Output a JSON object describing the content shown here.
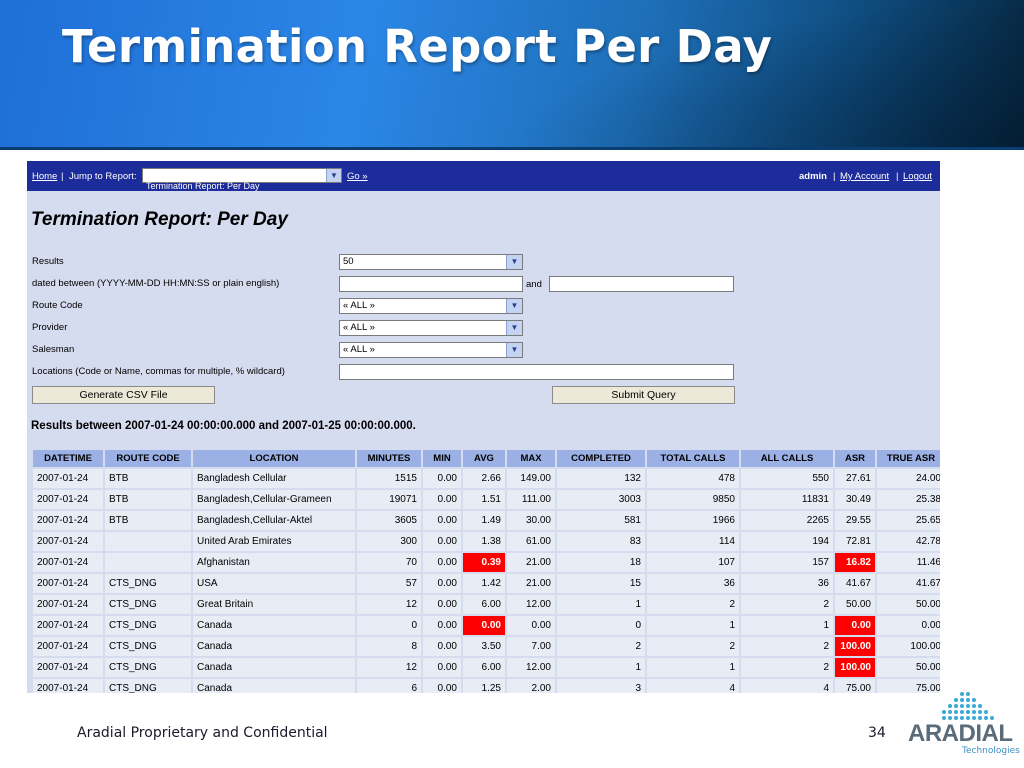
{
  "slide": {
    "title": "Termination Report Per Day",
    "footer": "Aradial Proprietary and Confidential",
    "page_number": "34",
    "logo_word": "ARADIAL",
    "logo_tagline": "Technologies"
  },
  "navbar": {
    "home": "Home",
    "separator": "|",
    "jump_label": "Jump to Report:",
    "jump_selected": "Termination Report: Per Day",
    "go": "Go »",
    "user": "admin",
    "my_account": "My Account",
    "logout": "Logout"
  },
  "page_heading": "Termination Report: Per Day",
  "form": {
    "results_label": "Results",
    "results_value": "50",
    "dated_label": "dated between (YYYY-MM-DD HH:MN:SS or plain english)",
    "and_label": "and",
    "dated_from": "",
    "dated_to": "",
    "route_code_label": "Route Code",
    "route_code_value": "« ALL »",
    "provider_label": "Provider",
    "provider_value": "« ALL »",
    "salesman_label": "Salesman",
    "salesman_value": "« ALL »",
    "locations_label": "Locations (Code or Name, commas for multiple, % wildcard)",
    "locations_value": "",
    "csv_button": "Generate CSV File",
    "submit_button": "Submit Query"
  },
  "results_heading": "Results between 2007-01-24 00:00:00.000 and 2007-01-25 00:00:00.000.",
  "table": {
    "columns": [
      "DATETIME",
      "ROUTE CODE",
      "LOCATION",
      "MINUTES",
      "MIN",
      "AVG",
      "MAX",
      "COMPLETED",
      "TOTAL CALLS",
      "ALL CALLS",
      "ASR",
      "TRUE ASR"
    ],
    "rows": [
      [
        "2007-01-24",
        "BTB",
        "Bangladesh Cellular",
        "1515",
        "0.00",
        "2.66",
        "149.00",
        "132",
        "478",
        "550",
        "27.61",
        "24.00"
      ],
      [
        "2007-01-24",
        "BTB",
        "Bangladesh,Cellular-Grameen",
        "19071",
        "0.00",
        "1.51",
        "111.00",
        "3003",
        "9850",
        "11831",
        "30.49",
        "25.38"
      ],
      [
        "2007-01-24",
        "BTB",
        "Bangladesh,Cellular-Aktel",
        "3605",
        "0.00",
        "1.49",
        "30.00",
        "581",
        "1966",
        "2265",
        "29.55",
        "25.65"
      ],
      [
        "2007-01-24",
        "",
        "United Arab Emirates",
        "300",
        "0.00",
        "1.38",
        "61.00",
        "83",
        "114",
        "194",
        "72.81",
        "42.78"
      ],
      [
        "2007-01-24",
        "",
        "Afghanistan",
        "70",
        "0.00",
        "0.39",
        "21.00",
        "18",
        "107",
        "157",
        "16.82",
        "11.46"
      ],
      [
        "2007-01-24",
        "CTS_DNG",
        "USA",
        "57",
        "0.00",
        "1.42",
        "21.00",
        "15",
        "36",
        "36",
        "41.67",
        "41.67"
      ],
      [
        "2007-01-24",
        "CTS_DNG",
        "Great Britain",
        "12",
        "0.00",
        "6.00",
        "12.00",
        "1",
        "2",
        "2",
        "50.00",
        "50.00"
      ],
      [
        "2007-01-24",
        "CTS_DNG",
        "Canada",
        "0",
        "0.00",
        "0.00",
        "0.00",
        "0",
        "1",
        "1",
        "0.00",
        "0.00"
      ],
      [
        "2007-01-24",
        "CTS_DNG",
        "Canada",
        "8",
        "0.00",
        "3.50",
        "7.00",
        "2",
        "2",
        "2",
        "100.00",
        "100.00"
      ],
      [
        "2007-01-24",
        "CTS_DNG",
        "Canada",
        "12",
        "0.00",
        "6.00",
        "12.00",
        "1",
        "1",
        "2",
        "100.00",
        "50.00"
      ],
      [
        "2007-01-24",
        "CTS_DNG",
        "Canada",
        "6",
        "0.00",
        "1.25",
        "2.00",
        "3",
        "4",
        "4",
        "75.00",
        "75.00"
      ]
    ],
    "highlighted_cells": [
      {
        "row": 4,
        "col": 5
      },
      {
        "row": 4,
        "col": 10
      },
      {
        "row": 7,
        "col": 5
      },
      {
        "row": 7,
        "col": 10
      },
      {
        "row": 8,
        "col": 10
      },
      {
        "row": 9,
        "col": 10
      }
    ],
    "highlight_color": "#ff0000",
    "header_color": "#9bb0e4"
  },
  "colors": {
    "navbar": "#1c2c9a",
    "panel_background": "#d6dcef"
  }
}
